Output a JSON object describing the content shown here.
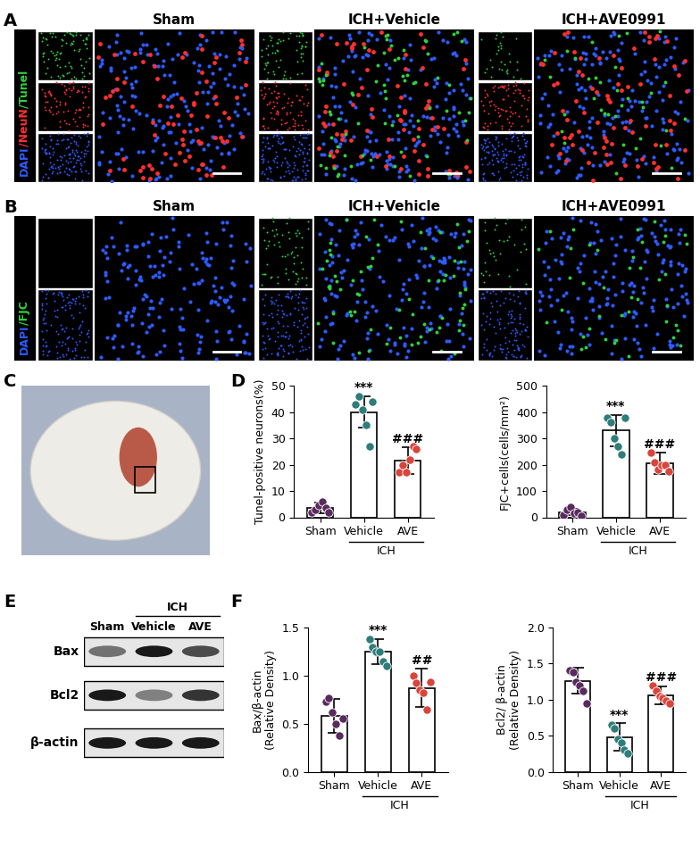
{
  "panel_labels": [
    "A",
    "B",
    "C",
    "D",
    "E",
    "F"
  ],
  "image_groups": [
    "Sham",
    "ICH+Vehicle",
    "ICH+AVE0991"
  ],
  "panel_a_stain": [
    {
      "text": "DAPI",
      "color": "#2d5bff"
    },
    {
      "text": "/NeuN",
      "color": "#ff3030"
    },
    {
      "text": "/Tunel",
      "color": "#30d040"
    }
  ],
  "panel_b_stain": [
    {
      "text": "DAPI",
      "color": "#2d5bff"
    },
    {
      "text": "/FJC",
      "color": "#30d040"
    }
  ],
  "blot": {
    "proteins": [
      "Bax",
      "Bcl2",
      "β-actin"
    ],
    "lanes": [
      "Sham",
      "Vehicle",
      "AVE"
    ],
    "group_label": "ICH",
    "group_lanes": [
      "Vehicle",
      "AVE"
    ]
  },
  "chart_data": [
    {
      "type": "bar",
      "y_label": "Tunel-positive neurons(%)",
      "categories": [
        "Sham",
        "Vehicle",
        "AVE"
      ],
      "values": [
        3.5,
        40,
        21.5
      ],
      "errors": [
        2,
        6,
        5
      ],
      "points": [
        [
          2,
          3,
          4.5,
          6,
          3.5,
          2
        ],
        [
          43,
          46,
          41,
          35,
          27,
          44
        ],
        [
          17,
          20,
          17,
          22,
          27,
          26
        ]
      ],
      "colors": [
        "#5a2a5e",
        "#2e7d7a",
        "#d9453b"
      ],
      "significance": [
        null,
        "***",
        "###"
      ],
      "group_label": "ICH",
      "group_categories": [
        "Vehicle",
        "AVE"
      ],
      "ylim": [
        0,
        50
      ],
      "yticks": [
        0,
        10,
        20,
        30,
        40,
        50
      ]
    },
    {
      "type": "bar",
      "y_label": "FJC+cells(cells/mm²)",
      "categories": [
        "Sham",
        "Vehicle",
        "AVE"
      ],
      "values": [
        20,
        330,
        205
      ],
      "errors": [
        12,
        60,
        40
      ],
      "points": [
        [
          10,
          30,
          40,
          15,
          20,
          5
        ],
        [
          380,
          360,
          300,
          270,
          240,
          380
        ],
        [
          245,
          210,
          180,
          200,
          200,
          175
        ]
      ],
      "colors": [
        "#5a2a5e",
        "#2e7d7a",
        "#d9453b"
      ],
      "significance": [
        null,
        "***",
        "###"
      ],
      "group_label": "ICH",
      "group_categories": [
        "Vehicle",
        "AVE"
      ],
      "ylim": [
        0,
        500
      ],
      "yticks": [
        0,
        100,
        200,
        300,
        400,
        500
      ]
    },
    {
      "type": "bar",
      "y_label": "Bax/β-actin\n(Relative Density)",
      "categories": [
        "Sham",
        "Vehicle",
        "AVE"
      ],
      "values": [
        0.58,
        1.25,
        0.87
      ],
      "errors": [
        0.18,
        0.13,
        0.2
      ],
      "points": [
        [
          0.73,
          0.77,
          0.62,
          0.5,
          0.38,
          0.55
        ],
        [
          1.38,
          1.3,
          1.25,
          1.25,
          1.15,
          1.1
        ],
        [
          1.0,
          0.92,
          0.85,
          0.82,
          0.65,
          0.93
        ]
      ],
      "colors": [
        "#5a2a5e",
        "#2e7d7a",
        "#d9453b"
      ],
      "significance": [
        null,
        "***",
        "##"
      ],
      "group_label": "ICH",
      "group_categories": [
        "Vehicle",
        "AVE"
      ],
      "ylim": [
        0,
        1.5
      ],
      "yticks": [
        {
          "value": 0,
          "label": "0.0"
        },
        0.5,
        {
          "value": 1,
          "label": "1.0"
        },
        1.5
      ]
    },
    {
      "type": "bar",
      "y_label": "Bcl2/ β-actin\n(Relative Density)",
      "categories": [
        "Sham",
        "Vehicle",
        "AVE"
      ],
      "values": [
        1.26,
        0.48,
        1.06
      ],
      "errors": [
        0.18,
        0.19,
        0.12
      ],
      "points": [
        [
          1.4,
          1.38,
          1.25,
          1.2,
          1.12,
          0.95
        ],
        [
          0.65,
          0.6,
          0.45,
          0.4,
          0.3,
          0.25
        ],
        [
          1.2,
          1.12,
          1.05,
          1.02,
          0.98,
          0.95
        ]
      ],
      "colors": [
        "#5a2a5e",
        "#2e7d7a",
        "#d9453b"
      ],
      "significance": [
        null,
        "***",
        "###"
      ],
      "group_label": "ICH",
      "group_categories": [
        "Vehicle",
        "AVE"
      ],
      "ylim": [
        0,
        2.0
      ],
      "yticks": [
        {
          "value": 0,
          "label": "0.0"
        },
        0.5,
        {
          "value": 1,
          "label": "1.0"
        },
        1.5,
        {
          "value": 2,
          "label": "2.0"
        }
      ]
    }
  ]
}
